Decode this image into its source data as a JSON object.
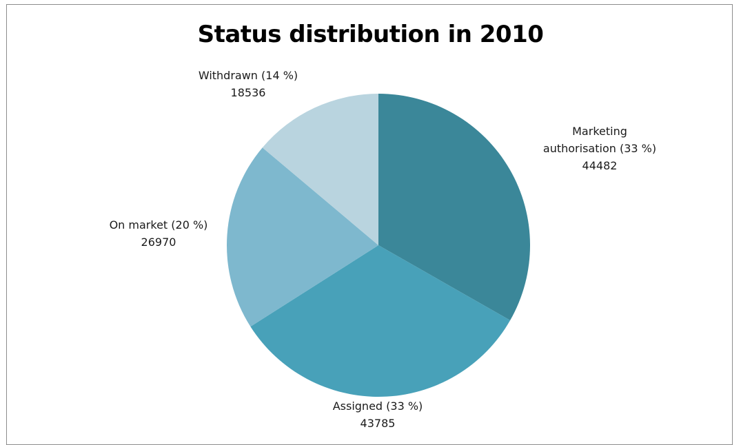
{
  "chart_data": {
    "type": "pie",
    "title": "Status distribution in 2010",
    "categories": [
      "Marketing authorisation",
      "Assigned",
      "On market",
      "Withdrawn"
    ],
    "values": [
      44482,
      43785,
      26970,
      18536
    ],
    "slices": [
      {
        "label_lines": [
          "Marketing",
          "authorisation (33 %)"
        ],
        "value_text": "44482",
        "value": 44482,
        "color": "#3b8799"
      },
      {
        "label_lines": [
          "Assigned (33 %)"
        ],
        "value_text": "43785",
        "value": 43785,
        "color": "#48a1b9"
      },
      {
        "label_lines": [
          "On market (20 %)"
        ],
        "value_text": "26970",
        "value": 26970,
        "color": "#7eb8ce"
      },
      {
        "label_lines": [
          "Withdrawn (14 %)"
        ],
        "value_text": "18536",
        "value": 18536,
        "color": "#b9d4df"
      }
    ],
    "start_angle": "top",
    "direction": "clockwise",
    "legend": "none"
  }
}
